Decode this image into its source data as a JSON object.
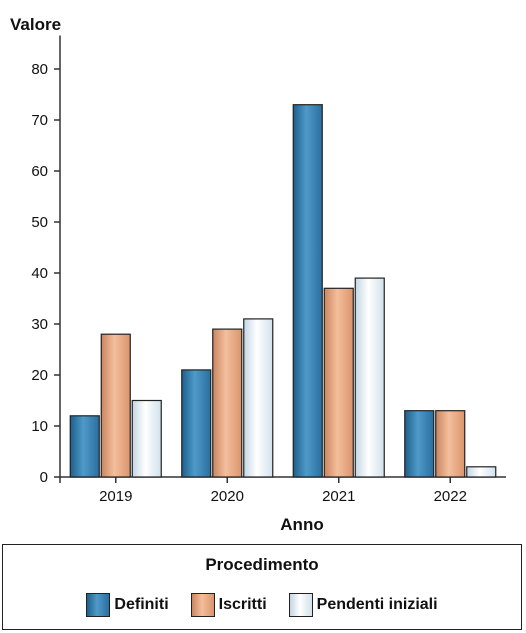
{
  "chart_data": {
    "type": "bar",
    "ylabel": "Valore",
    "xlabel": "Anno",
    "categories": [
      "2019",
      "2020",
      "2021",
      "2022"
    ],
    "ylim": [
      0,
      85
    ],
    "yticks": [
      0,
      10,
      20,
      30,
      40,
      50,
      60,
      70,
      80
    ],
    "grid": false,
    "series": [
      {
        "name": "Definiti",
        "values": [
          12,
          21,
          73,
          13
        ],
        "color": "#2f78a8"
      },
      {
        "name": "Iscritti",
        "values": [
          28,
          29,
          37,
          13
        ],
        "color": "#e5a57f"
      },
      {
        "name": "Pendenti iniziali",
        "values": [
          15,
          31,
          39,
          2
        ],
        "color": "#dde9f2"
      }
    ],
    "legend": {
      "title": "Procedimento",
      "placement": "bottom"
    }
  }
}
